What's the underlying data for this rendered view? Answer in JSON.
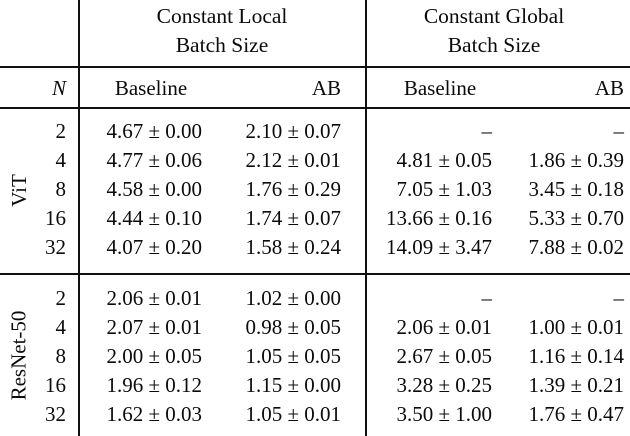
{
  "header": {
    "n": "N",
    "local_group": {
      "line1": "Constant Local",
      "line2": "Batch Size"
    },
    "global_group": {
      "line1": "Constant Global",
      "line2": "Batch Size"
    },
    "baseline_local": "Baseline",
    "ab_local": "AB",
    "baseline_global": "Baseline",
    "ab_global": "AB"
  },
  "groups": [
    {
      "label": "ViT",
      "rows": [
        {
          "n": "2",
          "lb": "4.67 ± 0.00",
          "la": "2.10 ± 0.07",
          "gb": "–",
          "ga": "–"
        },
        {
          "n": "4",
          "lb": "4.77 ± 0.06",
          "la": "2.12 ± 0.01",
          "gb": "4.81 ± 0.05",
          "ga": "1.86 ± 0.39"
        },
        {
          "n": "8",
          "lb": "4.58 ± 0.00",
          "la": "1.76 ± 0.29",
          "gb": "7.05 ± 1.03",
          "ga": "3.45 ± 0.18"
        },
        {
          "n": "16",
          "lb": "4.44 ± 0.10",
          "la": "1.74 ± 0.07",
          "gb": "13.66 ± 0.16",
          "ga": "5.33 ± 0.70"
        },
        {
          "n": "32",
          "lb": "4.07 ± 0.20",
          "la": "1.58 ± 0.24",
          "gb": "14.09 ± 3.47",
          "ga": "7.88 ± 0.02"
        }
      ]
    },
    {
      "label": "ResNet-50",
      "rows": [
        {
          "n": "2",
          "lb": "2.06 ± 0.01",
          "la": "1.02 ± 0.00",
          "gb": "–",
          "ga": "–"
        },
        {
          "n": "4",
          "lb": "2.07 ± 0.01",
          "la": "0.98 ± 0.05",
          "gb": "2.06 ± 0.01",
          "ga": "1.00 ± 0.01"
        },
        {
          "n": "8",
          "lb": "2.00 ± 0.05",
          "la": "1.05 ± 0.05",
          "gb": "2.67 ± 0.05",
          "ga": "1.16 ± 0.14"
        },
        {
          "n": "16",
          "lb": "1.96 ± 0.12",
          "la": "1.15 ± 0.00",
          "gb": "3.28 ± 0.25",
          "ga": "1.39 ± 0.21"
        },
        {
          "n": "32",
          "lb": "1.62 ± 0.03",
          "la": "1.05 ± 0.01",
          "gb": "3.50 ± 1.00",
          "ga": "1.76 ± 0.47"
        }
      ]
    }
  ]
}
